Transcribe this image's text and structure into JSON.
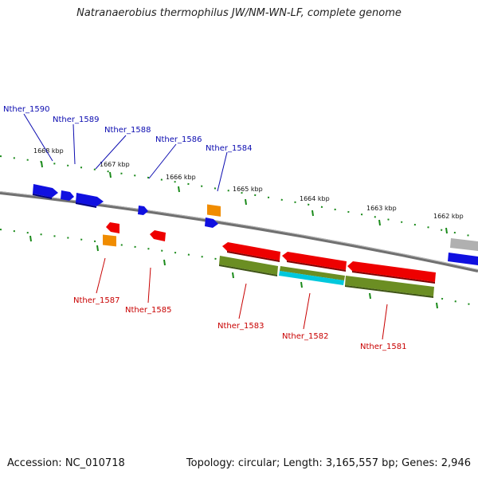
{
  "title": "Natranaerobius thermophilus JW/NM-WN-LF, complete genome",
  "footer": {
    "accession": "Accession: NC_010718",
    "summary": "Topology: circular; Length: 3,165,557 bp; Genes: 2,946"
  },
  "kbp_labels": [
    "1668 kbp",
    "1667 kbp",
    "1666 kbp",
    "1665 kbp",
    "1664 kbp",
    "1663 kbp",
    "1662 kbp"
  ],
  "top_labels": [
    "Nther_1590",
    "Nther_1589",
    "Nther_1588",
    "Nther_1586",
    "Nther_1584"
  ],
  "bottom_labels": [
    "Nther_1587",
    "Nther_1585",
    "Nther_1583",
    "Nther_1582",
    "Nther_1581"
  ],
  "colors": {
    "forward_gene": "#1010e0",
    "reverse_gene": "#ee0000",
    "orange_feature": "#f08c00",
    "olive_feature": "#6b8e23",
    "cyan_feature": "#00c8dc",
    "grey_feature": "#b0b0b0",
    "backbone": "#808080",
    "tick": "#1a8a1a"
  }
}
